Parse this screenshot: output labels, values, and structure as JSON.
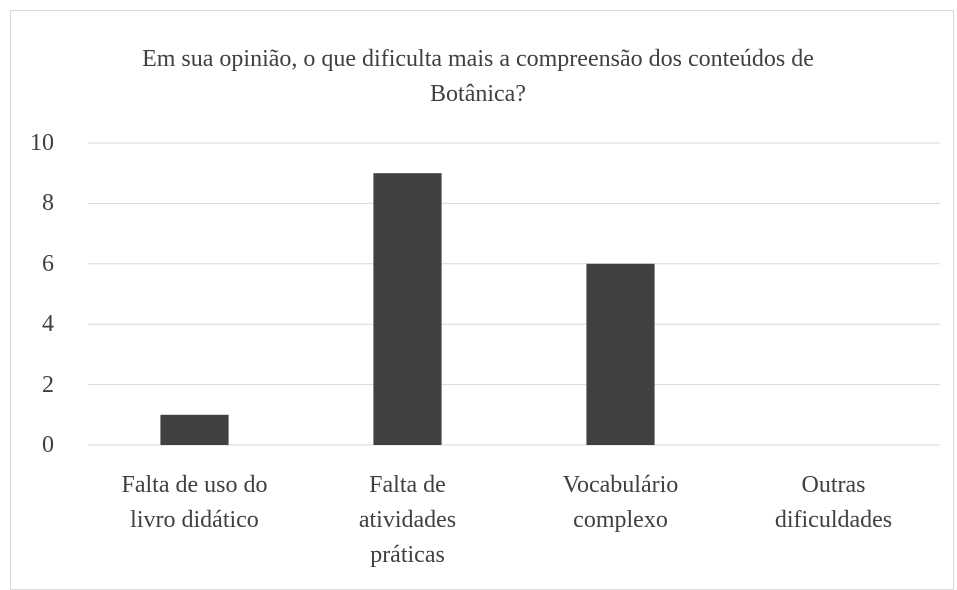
{
  "chart_data": {
    "type": "bar",
    "title": "Em sua opinião, o que dificulta mais a compreensão dos conteúdos de Botânica?",
    "categories": [
      "Falta de uso do livro didático",
      "Falta de atividades práticas",
      "Vocabulário complexo",
      "Outras dificuldades"
    ],
    "values": [
      1,
      9,
      6,
      0
    ],
    "color": "#404040",
    "ylim": [
      0,
      10
    ],
    "yticks": [
      0,
      2,
      4,
      6,
      8,
      10
    ],
    "grid": true
  }
}
